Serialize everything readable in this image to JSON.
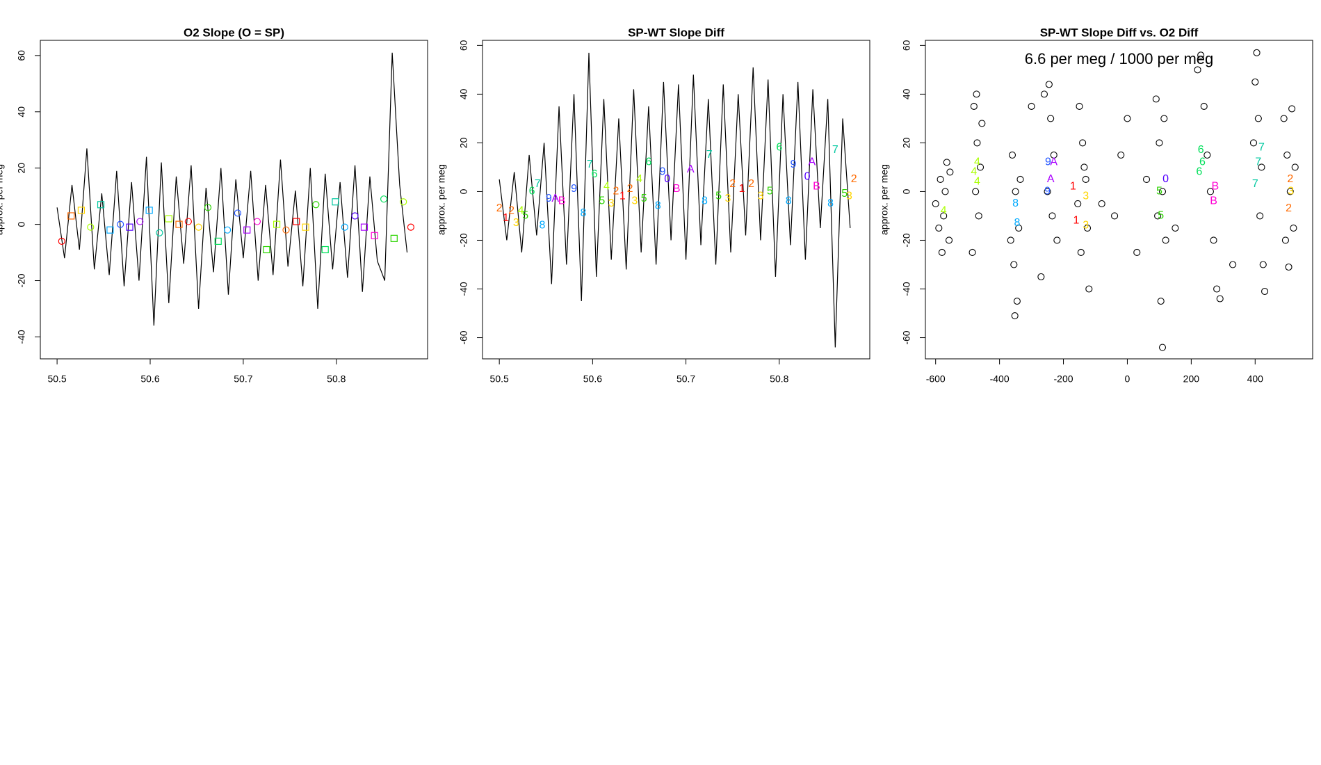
{
  "chart_data": [
    {
      "type": "line",
      "title": "O2 Slope (O = SP)",
      "y_label": "approx. per meg",
      "xlim": [
        50.482,
        50.898
      ],
      "ylim": [
        -47.8,
        65.4
      ],
      "xticks": [
        50.5,
        50.6,
        50.7,
        50.8
      ],
      "yticks": [
        -40,
        -20,
        0,
        20,
        40,
        60
      ],
      "series": [
        {
          "color": "#000000",
          "x": [
            50.5,
            50.508,
            50.516,
            50.524,
            50.532,
            50.54,
            50.548,
            50.556,
            50.564,
            50.572,
            50.58,
            50.588,
            50.596,
            50.604,
            50.612,
            50.62,
            50.628,
            50.636,
            50.644,
            50.652,
            50.66,
            50.668,
            50.676,
            50.684,
            50.692,
            50.7,
            50.708,
            50.716,
            50.724,
            50.732,
            50.74,
            50.748,
            50.756,
            50.764,
            50.772,
            50.78,
            50.788,
            50.796,
            50.804,
            50.812,
            50.82,
            50.828,
            50.836,
            50.844,
            50.852,
            50.86,
            50.868,
            50.876
          ],
          "values": [
            6,
            -12,
            14,
            -9,
            27,
            -16,
            11,
            -18,
            19,
            -22,
            15,
            -20,
            24,
            -36,
            22,
            -28,
            17,
            -14,
            21,
            -30,
            13,
            -17,
            20,
            -25,
            16,
            -12,
            19,
            -20,
            14,
            -18,
            23,
            -15,
            12,
            -22,
            20,
            -30,
            18,
            -16,
            15,
            -19,
            21,
            -24,
            17,
            -13,
            -20,
            61,
            14,
            -10
          ]
        }
      ],
      "points": {
        "x": [
          50.505,
          50.515,
          50.526,
          50.536,
          50.547,
          50.557,
          50.568,
          50.578,
          50.589,
          50.599,
          50.61,
          50.62,
          50.631,
          50.641,
          50.652,
          50.662,
          50.673,
          50.683,
          50.694,
          50.704,
          50.715,
          50.725,
          50.736,
          50.746,
          50.757,
          50.767,
          50.778,
          50.788,
          50.799,
          50.809,
          50.82,
          50.83,
          50.841,
          50.851,
          50.862,
          50.872,
          50.88
        ],
        "values": [
          -6,
          3,
          5,
          -1,
          7,
          -2,
          0,
          -1,
          1,
          5,
          -3,
          2,
          0,
          1,
          -1,
          6,
          -6,
          -2,
          4,
          -2,
          1,
          -9,
          0,
          -2,
          1,
          -1,
          7,
          -9,
          8,
          -1,
          3,
          -1,
          -4,
          9,
          -5,
          8,
          -1
        ],
        "shapes": [
          "circle",
          "square",
          "square",
          "circle",
          "square",
          "square",
          "circle",
          "square",
          "circle",
          "square",
          "circle",
          "square",
          "square",
          "circle",
          "circle",
          "circle",
          "square",
          "circle",
          "circle",
          "square",
          "circle",
          "square",
          "square",
          "circle",
          "square",
          "square",
          "circle",
          "square",
          "square",
          "circle",
          "circle",
          "square",
          "square",
          "circle",
          "square",
          "circle",
          "circle"
        ],
        "colors": [
          "#FF0000",
          "#FF6A00",
          "#FFD500",
          "#AAFF00",
          "#00C8A0",
          "#00AAFF",
          "#2255FF",
          "#5500FF",
          "#AA00FF",
          "#00AAFF",
          "#00C8A0",
          "#AAFF00",
          "#FF6A00",
          "#FF0000",
          "#FFD500",
          "#2BD400",
          "#00E05A",
          "#00AAFF",
          "#2255FF",
          "#AA00FF",
          "#FF00D4",
          "#2BD400",
          "#AAFF00",
          "#FF6A00",
          "#FF0000",
          "#FFD500",
          "#2BD400",
          "#00E05A",
          "#00C8A0",
          "#00AAFF",
          "#5500FF",
          "#AA00FF",
          "#FF00D4",
          "#00E05A",
          "#2BD400",
          "#AAFF00",
          "#FF0000"
        ]
      }
    },
    {
      "type": "line",
      "title": "SP-WT Slope Diff",
      "y_label": "approx. per meg",
      "xlim": [
        50.482,
        50.897
      ],
      "ylim": [
        -68.7,
        62.1
      ],
      "xticks": [
        50.5,
        50.6,
        50.7,
        50.8
      ],
      "yticks": [
        -60,
        -40,
        -20,
        0,
        20,
        40,
        60
      ],
      "series": [
        {
          "color": "#000000",
          "x": [
            50.5,
            50.508,
            50.516,
            50.524,
            50.532,
            50.54,
            50.548,
            50.556,
            50.564,
            50.572,
            50.58,
            50.588,
            50.596,
            50.604,
            50.612,
            50.62,
            50.628,
            50.636,
            50.644,
            50.652,
            50.66,
            50.668,
            50.676,
            50.684,
            50.692,
            50.7,
            50.708,
            50.716,
            50.724,
            50.732,
            50.74,
            50.748,
            50.756,
            50.764,
            50.772,
            50.78,
            50.788,
            50.796,
            50.804,
            50.812,
            50.82,
            50.828,
            50.836,
            50.844,
            50.852,
            50.86,
            50.868,
            50.876
          ],
          "values": [
            5,
            -20,
            8,
            -25,
            15,
            -18,
            20,
            -38,
            35,
            -30,
            40,
            -45,
            57,
            -35,
            38,
            -28,
            30,
            -32,
            42,
            -25,
            35,
            -30,
            45,
            -20,
            44,
            -28,
            48,
            -22,
            38,
            -30,
            44,
            -25,
            40,
            -18,
            51,
            -20,
            46,
            -35,
            40,
            -22,
            45,
            -28,
            42,
            -15,
            38,
            -64,
            30,
            -15
          ]
        }
      ],
      "points": {
        "x": [
          50.5,
          50.507,
          50.513,
          50.518,
          50.523,
          50.528,
          50.535,
          50.541,
          50.546,
          50.553,
          50.56,
          50.567,
          50.58,
          50.59,
          50.597,
          50.602,
          50.61,
          50.615,
          50.62,
          50.625,
          50.632,
          50.64,
          50.645,
          50.65,
          50.655,
          50.66,
          50.67,
          50.675,
          50.68,
          50.69,
          50.705,
          50.72,
          50.725,
          50.735,
          50.745,
          50.75,
          50.76,
          50.77,
          50.78,
          50.79,
          50.8,
          50.81,
          50.815,
          50.83,
          50.835,
          50.84,
          50.855,
          50.86,
          50.87,
          50.875,
          50.88
        ],
        "values": [
          -7,
          -11,
          -8,
          -13,
          -8,
          -10,
          0,
          3,
          -14,
          -3,
          -3,
          -4,
          1,
          -9,
          11,
          7,
          -4,
          2,
          -5,
          0,
          -2,
          1,
          -4,
          5,
          -3,
          12,
          -6,
          8,
          5,
          1,
          9,
          -4,
          15,
          -2,
          -3,
          3,
          1,
          3,
          -2,
          0,
          18,
          -4,
          11,
          6,
          12,
          2,
          -5,
          17,
          -1,
          -2,
          5
        ],
        "labels": [
          "2",
          "1",
          "2",
          "3",
          "4",
          "5",
          "6",
          "7",
          "8",
          "9",
          "A",
          "B",
          "9",
          "8",
          "7",
          "6",
          "5",
          "4",
          "3",
          "2",
          "1",
          "2",
          "3",
          "4",
          "5",
          "6",
          "8",
          "9",
          "0",
          "B",
          "A",
          "8",
          "7",
          "5",
          "3",
          "2",
          "1",
          "2",
          "3",
          "5",
          "6",
          "8",
          "9",
          "0",
          "A",
          "B",
          "8",
          "7",
          "5",
          "3",
          "2"
        ],
        "colors": [
          "#FF6A00",
          "#FF0000",
          "#FF6A00",
          "#FFD500",
          "#AAFF00",
          "#2BD400",
          "#00E05A",
          "#00C8A0",
          "#00AAFF",
          "#2255FF",
          "#AA00FF",
          "#FF00D4",
          "#2255FF",
          "#00AAFF",
          "#00C8A0",
          "#00E05A",
          "#2BD400",
          "#AAFF00",
          "#FFD500",
          "#FF6A00",
          "#FF0000",
          "#FF6A00",
          "#FFD500",
          "#AAFF00",
          "#2BD400",
          "#00E05A",
          "#00AAFF",
          "#2255FF",
          "#5500FF",
          "#FF00D4",
          "#AA00FF",
          "#00AAFF",
          "#00C8A0",
          "#2BD400",
          "#FFD500",
          "#FF6A00",
          "#FF0000",
          "#FF6A00",
          "#FFD500",
          "#2BD400",
          "#00E05A",
          "#00AAFF",
          "#2255FF",
          "#5500FF",
          "#AA00FF",
          "#FF00D4",
          "#00AAFF",
          "#00C8A0",
          "#2BD400",
          "#FFD500",
          "#FF6A00"
        ]
      }
    },
    {
      "type": "scatter",
      "title": "SP-WT Slope Diff vs. O2 Diff",
      "y_label": "approx. per meg",
      "annotation": "6.6 per meg / 1000 per meg",
      "xlim": [
        -632,
        580
      ],
      "ylim": [
        -68.7,
        62.1
      ],
      "xticks": [
        -600,
        -400,
        -200,
        0,
        200,
        400
      ],
      "yticks": [
        -60,
        -40,
        -20,
        0,
        20,
        40,
        60
      ],
      "series": [
        {
          "color": "#000000",
          "x": [
            -585,
            -575,
            -565,
            -558,
            -580,
            -570,
            -555,
            -590,
            -480,
            -470,
            -460,
            -475,
            -465,
            -485,
            -455,
            -472,
            -360,
            -350,
            -340,
            -355,
            -345,
            -365,
            -335,
            -352,
            -260,
            -240,
            -230,
            -250,
            -220,
            -270,
            -245,
            -235,
            -150,
            -140,
            -130,
            -125,
            -145,
            -120,
            -135,
            -155,
            90,
            100,
            110,
            120,
            105,
            95,
            115,
            110,
            220,
            240,
            250,
            260,
            270,
            280,
            230,
            290,
            400,
            410,
            420,
            415,
            425,
            405,
            430,
            395,
            490,
            500,
            510,
            520,
            505,
            515,
            495,
            525,
            -40,
            0,
            30,
            -80,
            60,
            -20,
            150,
            330,
            -300,
            -600
          ],
          "values": [
            5,
            -10,
            12,
            -20,
            -25,
            0,
            8,
            -15,
            35,
            20,
            10,
            0,
            -10,
            -25,
            28,
            40,
            15,
            0,
            -15,
            -30,
            -45,
            -20,
            5,
            -51,
            40,
            30,
            15,
            0,
            -20,
            -35,
            44,
            -10,
            35,
            20,
            5,
            -15,
            -25,
            -40,
            10,
            -5,
            38,
            20,
            0,
            -20,
            -45,
            -10,
            30,
            -64,
            50,
            35,
            15,
            0,
            -20,
            -40,
            56,
            -44,
            45,
            30,
            10,
            -10,
            -30,
            57,
            -41,
            20,
            30,
            15,
            0,
            -15,
            -31,
            34,
            -20,
            10,
            -10,
            30,
            -25,
            -5,
            5,
            15,
            -15,
            -30,
            35,
            -5
          ]
        }
      ],
      "points": {
        "x": [
          -575,
          -470,
          -480,
          -470,
          -350,
          -345,
          -248,
          -240,
          -230,
          -250,
          -170,
          -160,
          -130,
          -130,
          100,
          105,
          120,
          230,
          235,
          225,
          275,
          270,
          420,
          410,
          400,
          510,
          505,
          512
        ],
        "values": [
          -8,
          12,
          8,
          4,
          -5,
          -13,
          12,
          5,
          12,
          0,
          2,
          -12,
          -2,
          -14,
          0,
          -10,
          5,
          17,
          12,
          8,
          2,
          -4,
          18,
          12,
          3,
          5,
          -7,
          0
        ],
        "labels": [
          "4",
          "4",
          "4",
          "4",
          "8",
          "8",
          "9",
          "A",
          "A",
          "9",
          "1",
          "1",
          "3",
          "3",
          "5",
          "5",
          "0",
          "6",
          "6",
          "6",
          "B",
          "B",
          "7",
          "7",
          "7",
          "2",
          "2",
          "3"
        ],
        "colors": [
          "#AAFF00",
          "#AAFF00",
          "#AAFF00",
          "#AAFF00",
          "#00AAFF",
          "#00AAFF",
          "#2255FF",
          "#AA00FF",
          "#AA00FF",
          "#2255FF",
          "#FF0000",
          "#FF0000",
          "#FFD500",
          "#FFD500",
          "#2BD400",
          "#2BD400",
          "#5500FF",
          "#00E05A",
          "#00E05A",
          "#00E05A",
          "#FF00D4",
          "#FF00D4",
          "#00C8A0",
          "#00C8A0",
          "#00C8A0",
          "#FF6A00",
          "#FF6A00",
          "#FFD500"
        ]
      }
    }
  ]
}
